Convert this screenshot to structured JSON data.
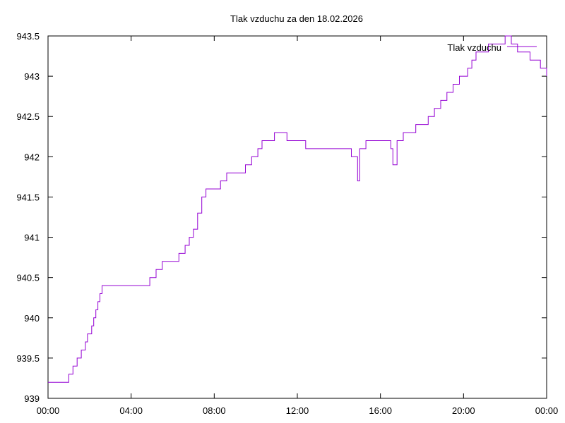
{
  "chart_data": {
    "type": "line",
    "title": "Tlak vzduchu za den 18.02.2026",
    "xlabel": "",
    "ylabel": "",
    "xlim": [
      "00:00",
      "24:00"
    ],
    "ylim": [
      939,
      943.5
    ],
    "x_ticks": [
      "00:00",
      "04:00",
      "08:00",
      "12:00",
      "16:00",
      "20:00",
      "00:00"
    ],
    "x_tick_hours": [
      0,
      4,
      8,
      12,
      16,
      20,
      24
    ],
    "y_ticks": [
      "939",
      "939.5",
      "940",
      "940.5",
      "941",
      "941.5",
      "942",
      "942.5",
      "943",
      "943.5"
    ],
    "y_tick_values": [
      939,
      939.5,
      940,
      940.5,
      941,
      941.5,
      942,
      942.5,
      943,
      943.5
    ],
    "grid": false,
    "legend_position": "top-right",
    "series": [
      {
        "name": "Tlak vzduchu",
        "color": "#9400d3",
        "x_hours": [
          0,
          0.1,
          0.9,
          1.0,
          1.2,
          1.4,
          1.6,
          1.8,
          1.9,
          2.1,
          2.2,
          2.3,
          2.4,
          2.5,
          2.6,
          2.7,
          2.8,
          2.9,
          3.0,
          3.1,
          3.3,
          3.4,
          3.6,
          3.8,
          4.0,
          4.3,
          4.6,
          4.9,
          5.2,
          5.5,
          5.7,
          6.0,
          6.3,
          6.6,
          6.8,
          7.0,
          7.2,
          7.4,
          7.6,
          7.8,
          8.0,
          8.3,
          8.6,
          8.9,
          9.2,
          9.5,
          9.8,
          10.1,
          10.3,
          10.6,
          10.9,
          11.2,
          11.5,
          11.8,
          12.1,
          12.4,
          12.8,
          13.1,
          13.4,
          13.8,
          14.2,
          14.6,
          14.9,
          15.0,
          15.3,
          15.6,
          15.9,
          16.2,
          16.5,
          16.6,
          16.8,
          17.1,
          17.4,
          17.7,
          18.0,
          18.3,
          18.6,
          18.9,
          19.2,
          19.5,
          19.8,
          20.0,
          20.2,
          20.4,
          20.6,
          20.9,
          21.2,
          21.5,
          21.8,
          22.0,
          22.3,
          22.6,
          22.9,
          23.2,
          23.5,
          23.7,
          23.9,
          24.0
        ],
        "values": [
          939.2,
          939.2,
          939.2,
          939.3,
          939.4,
          939.5,
          939.6,
          939.7,
          939.8,
          939.9,
          940.0,
          940.1,
          940.2,
          940.3,
          940.4,
          940.4,
          940.4,
          940.4,
          940.4,
          940.4,
          940.4,
          940.4,
          940.4,
          940.4,
          940.4,
          940.4,
          940.4,
          940.5,
          940.6,
          940.7,
          940.7,
          940.7,
          940.8,
          940.9,
          941.0,
          941.1,
          941.3,
          941.5,
          941.6,
          941.6,
          941.6,
          941.7,
          941.8,
          941.8,
          941.8,
          941.9,
          942.0,
          942.1,
          942.2,
          942.2,
          942.3,
          942.3,
          942.2,
          942.2,
          942.2,
          942.1,
          942.1,
          942.1,
          942.1,
          942.1,
          942.1,
          942.0,
          941.7,
          942.1,
          942.2,
          942.2,
          942.2,
          942.2,
          942.1,
          941.9,
          942.2,
          942.3,
          942.3,
          942.4,
          942.4,
          942.5,
          942.6,
          942.7,
          942.8,
          942.9,
          943.0,
          943.0,
          943.1,
          943.2,
          943.3,
          943.3,
          943.4,
          943.4,
          943.4,
          943.5,
          943.4,
          943.3,
          943.3,
          943.2,
          943.2,
          943.1,
          943.1,
          943.0
        ]
      }
    ]
  }
}
